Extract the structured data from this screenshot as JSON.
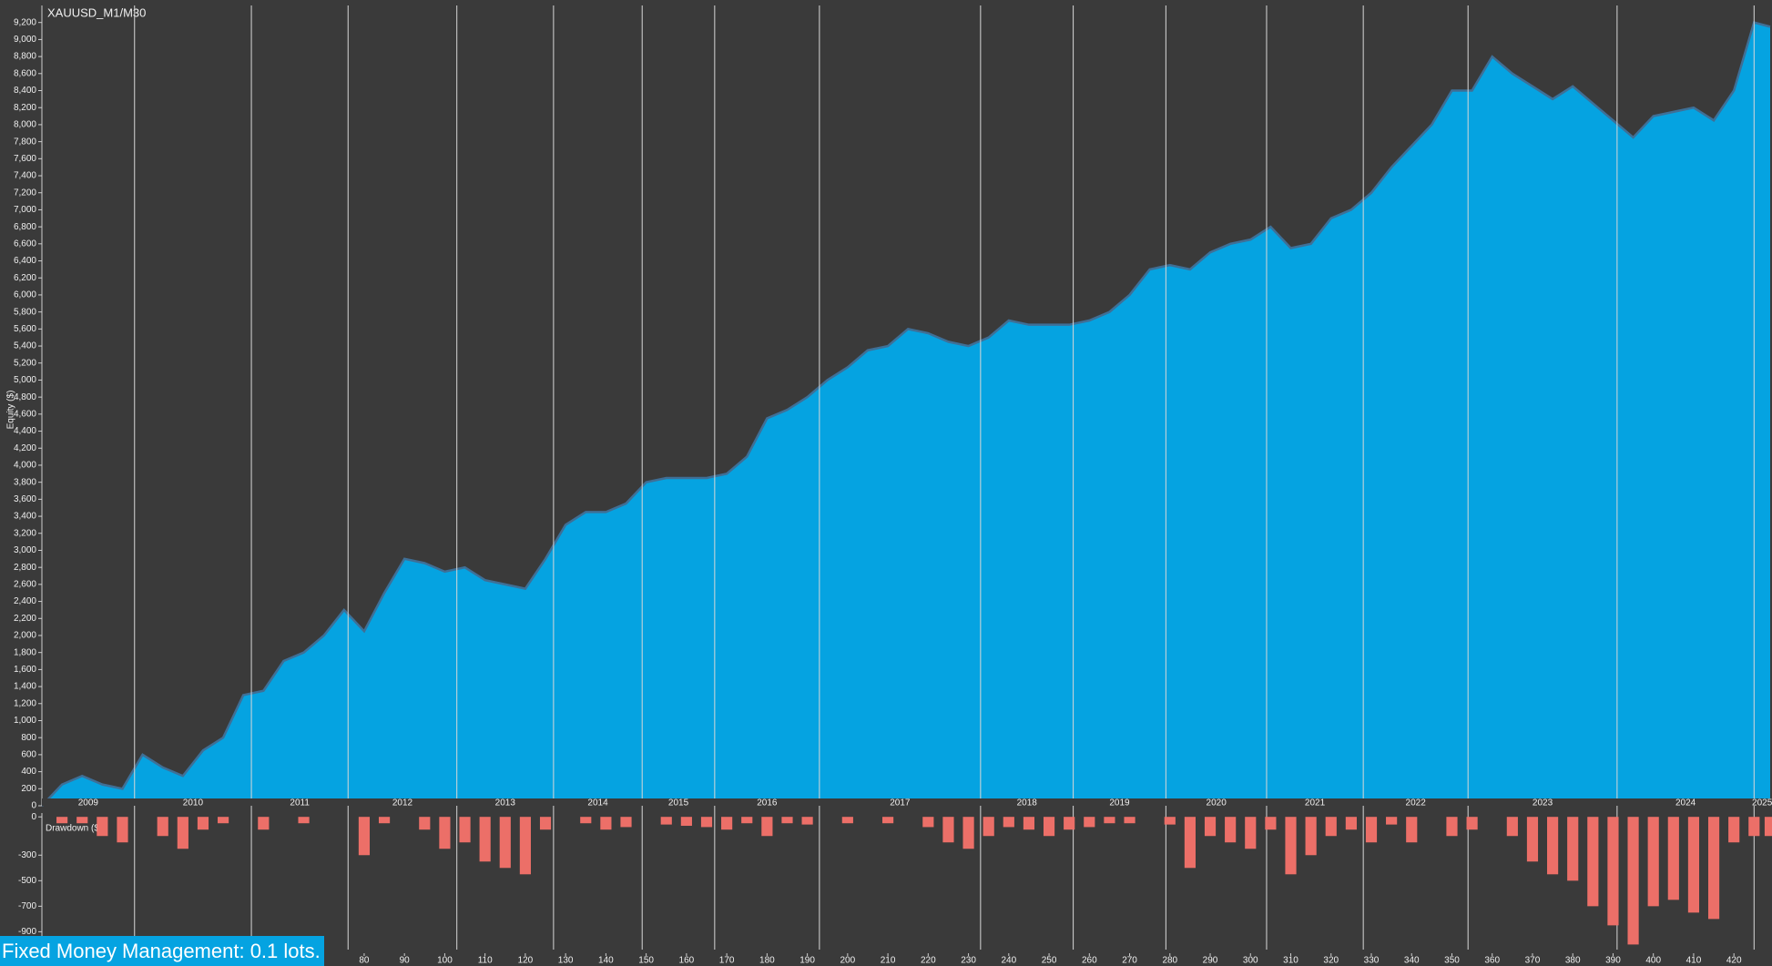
{
  "chart_data": [
    {
      "type": "area",
      "title": "XAUUSD_M1/M30",
      "y_label": "Equity ($)",
      "color": "#05a3e1",
      "line_color": "#3f6f96",
      "x": [
        0,
        5,
        10,
        15,
        20,
        25,
        30,
        35,
        40,
        45,
        50,
        55,
        60,
        65,
        70,
        75,
        80,
        85,
        90,
        95,
        100,
        105,
        110,
        115,
        120,
        125,
        130,
        135,
        140,
        145,
        150,
        155,
        160,
        165,
        170,
        175,
        180,
        185,
        190,
        195,
        200,
        205,
        210,
        215,
        220,
        225,
        230,
        235,
        240,
        245,
        250,
        255,
        260,
        265,
        270,
        275,
        280,
        285,
        290,
        295,
        300,
        305,
        310,
        315,
        320,
        325,
        330,
        335,
        340,
        345,
        350,
        355,
        360,
        365,
        370,
        375,
        380,
        385,
        390,
        395,
        400,
        405,
        410,
        415,
        420,
        425,
        429
      ],
      "values": [
        0,
        250,
        350,
        250,
        200,
        600,
        450,
        350,
        650,
        800,
        1300,
        1350,
        1700,
        1800,
        2000,
        2300,
        2050,
        2500,
        2900,
        2850,
        2750,
        2800,
        2650,
        2600,
        2550,
        2900,
        3300,
        3450,
        3450,
        3550,
        3800,
        3850,
        3850,
        3850,
        3900,
        4100,
        4550,
        4650,
        4800,
        5000,
        5150,
        5350,
        5400,
        5600,
        5550,
        5450,
        5400,
        5500,
        5700,
        5650,
        5650,
        5650,
        5700,
        5800,
        6000,
        6300,
        6350,
        6300,
        6500,
        6600,
        6650,
        6800,
        6550,
        6600,
        6900,
        7000,
        7200,
        7500,
        7750,
        8000,
        8400,
        8400,
        8800,
        8600,
        8450,
        8300,
        8450,
        8250,
        8050,
        7850,
        8100,
        8150,
        8200,
        8050,
        8400,
        9200,
        9150
      ],
      "xlim": [
        0,
        429
      ],
      "ylim": [
        0,
        9400
      ],
      "yticks": [
        0,
        200,
        400,
        600,
        800,
        {
          "value": 1000,
          "label": "1,000"
        },
        {
          "value": 1200,
          "label": "1,200"
        },
        {
          "value": 1400,
          "label": "1,400"
        },
        {
          "value": 1600,
          "label": "1,600"
        },
        {
          "value": 1800,
          "label": "1,800"
        },
        {
          "value": 2000,
          "label": "2,000"
        },
        {
          "value": 2200,
          "label": "2,200"
        },
        {
          "value": 2400,
          "label": "2,400"
        },
        {
          "value": 2600,
          "label": "2,600"
        },
        {
          "value": 2800,
          "label": "2,800"
        },
        {
          "value": 3000,
          "label": "3,000"
        },
        {
          "value": 3200,
          "label": "3,200"
        },
        {
          "value": 3400,
          "label": "3,400"
        },
        {
          "value": 3600,
          "label": "3,600"
        },
        {
          "value": 3800,
          "label": "3,800"
        },
        {
          "value": 4000,
          "label": "4,000"
        },
        {
          "value": 4200,
          "label": "4,200"
        },
        {
          "value": 4400,
          "label": "4,400"
        },
        {
          "value": 4600,
          "label": "4,600"
        },
        {
          "value": 4800,
          "label": "4,800"
        },
        {
          "value": 5000,
          "label": "5,000"
        },
        {
          "value": 5200,
          "label": "5,200"
        },
        {
          "value": 5400,
          "label": "5,400"
        },
        {
          "value": 5600,
          "label": "5,600"
        },
        {
          "value": 5800,
          "label": "5,800"
        },
        {
          "value": 6000,
          "label": "6,000"
        },
        {
          "value": 6200,
          "label": "6,200"
        },
        {
          "value": 6400,
          "label": "6,400"
        },
        {
          "value": 6600,
          "label": "6,600"
        },
        {
          "value": 6800,
          "label": "6,800"
        },
        {
          "value": 7000,
          "label": "7,000"
        },
        {
          "value": 7200,
          "label": "7,200"
        },
        {
          "value": 7400,
          "label": "7,400"
        },
        {
          "value": 7600,
          "label": "7,600"
        },
        {
          "value": 7800,
          "label": "7,800"
        },
        {
          "value": 8000,
          "label": "8,000"
        },
        {
          "value": 8200,
          "label": "8,200"
        },
        {
          "value": 8400,
          "label": "8,400"
        },
        {
          "value": 8600,
          "label": "8,600"
        },
        {
          "value": 8800,
          "label": "8,800"
        },
        {
          "value": 9000,
          "label": "9,000"
        },
        {
          "value": 9200,
          "label": "9,200"
        }
      ],
      "years": [
        "2009",
        "2010",
        "2011",
        "2012",
        "2013",
        "2014",
        "2015",
        "2016",
        "2017",
        "2018",
        "2019",
        "2020",
        "2021",
        "2022",
        "2023",
        "2024",
        "2025"
      ],
      "year_starts": [
        23,
        52,
        76,
        103,
        127,
        149,
        167,
        193,
        233,
        256,
        279,
        304,
        328,
        354,
        391,
        425
      ]
    },
    {
      "type": "bar",
      "y_label": "Drawdown ($)",
      "color": "#ec6f68",
      "x": [
        0,
        5,
        10,
        15,
        20,
        25,
        30,
        35,
        40,
        45,
        50,
        55,
        60,
        65,
        70,
        75,
        80,
        85,
        90,
        95,
        100,
        105,
        110,
        115,
        120,
        125,
        130,
        135,
        140,
        145,
        150,
        155,
        160,
        165,
        170,
        175,
        180,
        185,
        190,
        195,
        200,
        205,
        210,
        215,
        220,
        225,
        230,
        235,
        240,
        245,
        250,
        255,
        260,
        265,
        270,
        275,
        280,
        285,
        290,
        295,
        300,
        305,
        310,
        315,
        320,
        325,
        330,
        335,
        340,
        345,
        350,
        355,
        360,
        365,
        370,
        375,
        380,
        385,
        390,
        395,
        400,
        405,
        410,
        415,
        420,
        425,
        429
      ],
      "values": [
        0,
        -50,
        -50,
        -150,
        -200,
        0,
        -150,
        -250,
        -100,
        -50,
        0,
        -100,
        0,
        -50,
        0,
        0,
        -300,
        -50,
        0,
        -100,
        -250,
        -200,
        -350,
        -400,
        -450,
        -100,
        0,
        -50,
        -100,
        -80,
        0,
        -60,
        -70,
        -80,
        -100,
        -50,
        -150,
        -50,
        -60,
        0,
        -50,
        0,
        -50,
        0,
        -80,
        -200,
        -250,
        -150,
        -80,
        -100,
        -150,
        -100,
        -80,
        -50,
        -50,
        0,
        -60,
        -400,
        -150,
        -200,
        -250,
        -100,
        -450,
        -300,
        -150,
        -100,
        -200,
        -60,
        -200,
        0,
        -150,
        -100,
        0,
        -150,
        -350,
        -450,
        -500,
        -700,
        -850,
        -1000,
        -700,
        -650,
        -750,
        -800,
        -200,
        -150,
        -150
      ],
      "xlim": [
        0,
        429
      ],
      "ylim": [
        -1040,
        30
      ],
      "yticks": [
        0,
        -300,
        -500,
        -700,
        -900
      ],
      "xticks": [
        80,
        90,
        100,
        110,
        120,
        130,
        140,
        150,
        160,
        170,
        180,
        190,
        200,
        210,
        220,
        230,
        240,
        250,
        260,
        270,
        280,
        290,
        300,
        310,
        320,
        330,
        340,
        350,
        360,
        370,
        380,
        390,
        400,
        410,
        420
      ]
    }
  ],
  "footer": "Fixed Money Management: 0.1 lots."
}
